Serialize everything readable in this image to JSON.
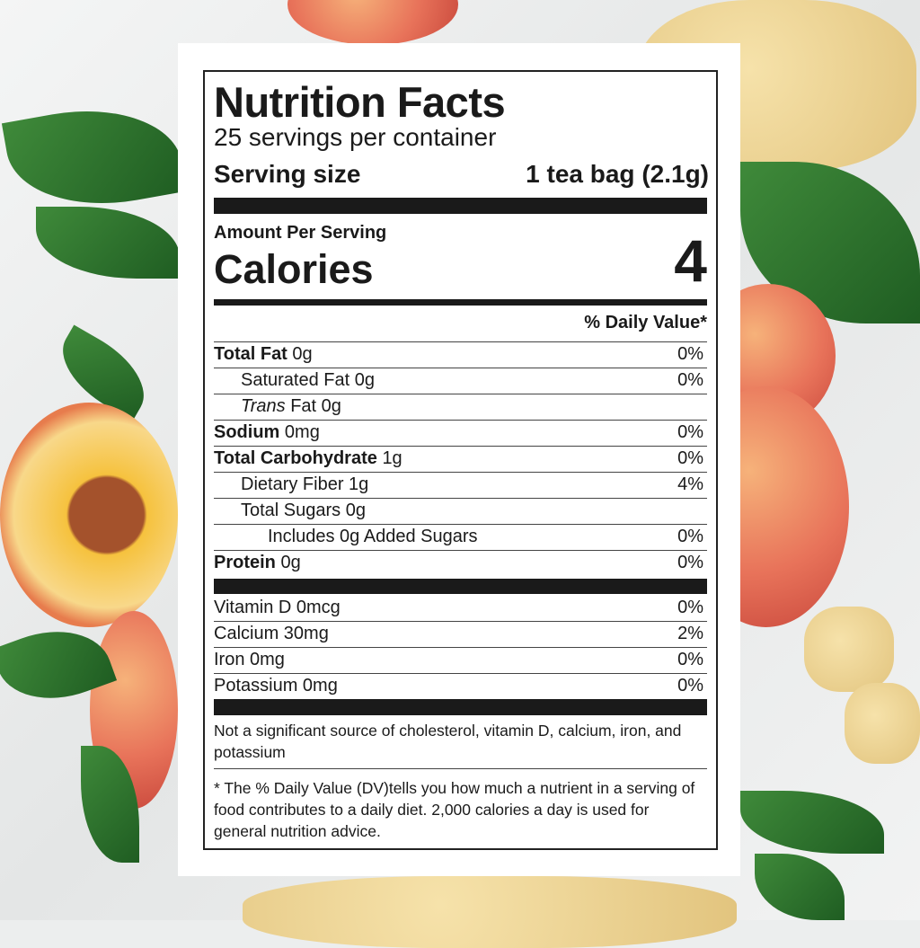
{
  "title": "Nutrition Facts",
  "servings": "25 servings per container",
  "serving_size_label": "Serving size",
  "serving_size_value": "1 tea bag (2.1g)",
  "amount_per_serving": "Amount Per Serving",
  "calories_label": "Calories",
  "calories_value": "4",
  "dv_header": "% Daily Value*",
  "nutrients": [
    {
      "name": "Total Fat",
      "amount": "0g",
      "dv": "0%",
      "bold": true,
      "indent": 0
    },
    {
      "name": "Saturated Fat",
      "amount": "0g",
      "dv": "0%",
      "bold": false,
      "indent": 1
    },
    {
      "name": "Trans",
      "name_suffix": "Fat",
      "amount": "0g",
      "dv": "",
      "bold": false,
      "indent": 1,
      "italic": true
    },
    {
      "name": "Sodium",
      "amount": "0mg",
      "dv": "0%",
      "bold": true,
      "indent": 0
    },
    {
      "name": "Total Carbohydrate",
      "amount": "1g",
      "dv": "0%",
      "bold": true,
      "indent": 0
    },
    {
      "name": "Dietary Fiber",
      "amount": "1g",
      "dv": "4%",
      "bold": false,
      "indent": 1
    },
    {
      "name": "Total Sugars",
      "amount": "0g",
      "dv": "",
      "bold": false,
      "indent": 1
    },
    {
      "name": "Includes 0g Added Sugars",
      "amount": "",
      "dv": "0%",
      "bold": false,
      "indent": 2
    },
    {
      "name": "Protein",
      "amount": "0g",
      "dv": "0%",
      "bold": true,
      "indent": 0
    }
  ],
  "vitamins": [
    {
      "name": "Vitamin D 0mcg",
      "dv": "0%"
    },
    {
      "name": "Calcium 30mg",
      "dv": "2%"
    },
    {
      "name": "Iron 0mg",
      "dv": "0%"
    },
    {
      "name": "Potassium 0mg",
      "dv": "0%"
    }
  ],
  "not_significant": "Not a significant source of cholesterol, vitamin D, calcium, iron, and potassium",
  "footnote": "* The % Daily Value (DV)tells you how much a nutrient in a serving of food contributes to a daily diet. 2,000 calories a day is used for general nutrition advice."
}
